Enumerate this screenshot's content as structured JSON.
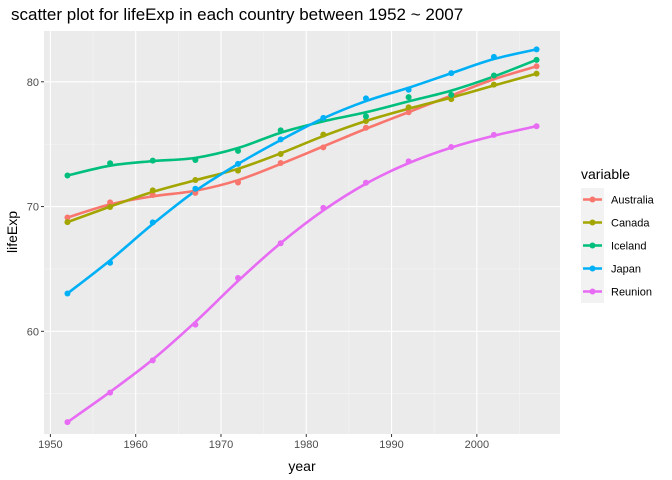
{
  "chart_data": {
    "type": "scatter",
    "title": "scatter plot for lifeExp in each country between 1952 ~ 2007",
    "xlabel": "year",
    "ylabel": "lifeExp",
    "xlim": [
      1949.25,
      2009.75
    ],
    "ylim": [
      51.77,
      84.07
    ],
    "xticks": [
      1950,
      1960,
      1970,
      1980,
      1990,
      2000
    ],
    "yticks": [
      60,
      70,
      80
    ],
    "grid": true,
    "background": "#EBEBEB",
    "legend": {
      "title": "variable",
      "position": "right"
    },
    "x": [
      1952,
      1957,
      1962,
      1967,
      1972,
      1977,
      1982,
      1987,
      1992,
      1997,
      2002,
      2007
    ],
    "series": [
      {
        "name": "Australia",
        "color": "#F8766D",
        "values": [
          69.12,
          70.33,
          70.93,
          71.1,
          71.93,
          73.49,
          74.74,
          76.32,
          77.56,
          78.83,
          80.37,
          81.24
        ]
      },
      {
        "name": "Canada",
        "color": "#A3A500",
        "values": [
          68.75,
          69.96,
          71.3,
          72.13,
          72.88,
          74.21,
          75.76,
          76.86,
          77.95,
          78.61,
          79.77,
          80.65
        ]
      },
      {
        "name": "Iceland",
        "color": "#00BF7D",
        "values": [
          72.49,
          73.47,
          73.68,
          73.73,
          74.46,
          76.11,
          76.99,
          77.23,
          78.77,
          78.95,
          80.5,
          81.76
        ]
      },
      {
        "name": "Japan",
        "color": "#00B0F6",
        "values": [
          63.03,
          65.5,
          68.73,
          71.43,
          73.42,
          75.38,
          77.11,
          78.67,
          79.36,
          80.69,
          82.0,
          82.6
        ]
      },
      {
        "name": "Reunion",
        "color": "#E76BF3",
        "values": [
          52.72,
          55.09,
          57.67,
          60.54,
          64.27,
          67.06,
          69.89,
          71.91,
          73.62,
          74.77,
          75.74,
          76.44
        ]
      }
    ]
  }
}
